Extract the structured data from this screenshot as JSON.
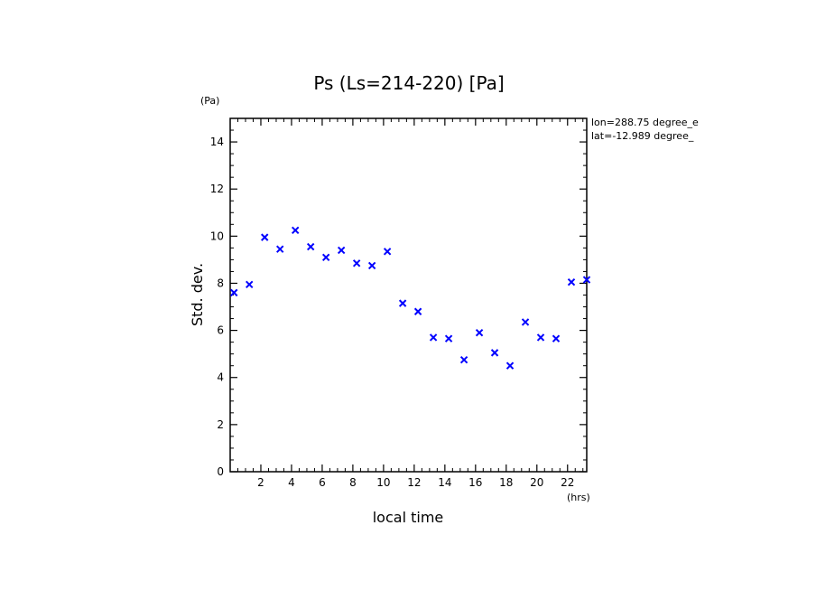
{
  "chart_data": {
    "type": "scatter",
    "title": "Ps (Ls=214-220) [Pa]",
    "xlabel": "local time",
    "ylabel": "Std. dev.",
    "x_unit": "(hrs)",
    "y_unit": "(Pa)",
    "info_lines": [
      "lon=288.75 degree_e",
      "lat=-12.989 degree_"
    ],
    "xlim": [
      0,
      23.25
    ],
    "ylim": [
      0,
      15
    ],
    "x_ticks": [
      2,
      4,
      6,
      8,
      10,
      12,
      14,
      16,
      18,
      20,
      22
    ],
    "y_ticks": [
      0,
      2,
      4,
      6,
      8,
      10,
      12,
      14
    ],
    "marker": "x",
    "marker_color": "#0000ff",
    "grid": false,
    "x": [
      0.25,
      1.25,
      2.25,
      3.25,
      4.25,
      5.25,
      6.25,
      7.25,
      8.25,
      9.25,
      10.25,
      11.25,
      12.25,
      13.25,
      14.25,
      15.25,
      16.25,
      17.25,
      18.25,
      19.25,
      20.25,
      21.25,
      22.25,
      23.25
    ],
    "y": [
      7.6,
      7.95,
      9.95,
      9.45,
      10.25,
      9.55,
      9.1,
      9.4,
      8.85,
      8.75,
      9.35,
      7.15,
      6.8,
      5.7,
      5.65,
      4.75,
      5.9,
      5.05,
      4.5,
      6.35,
      5.7,
      5.65,
      8.05,
      8.15
    ]
  }
}
